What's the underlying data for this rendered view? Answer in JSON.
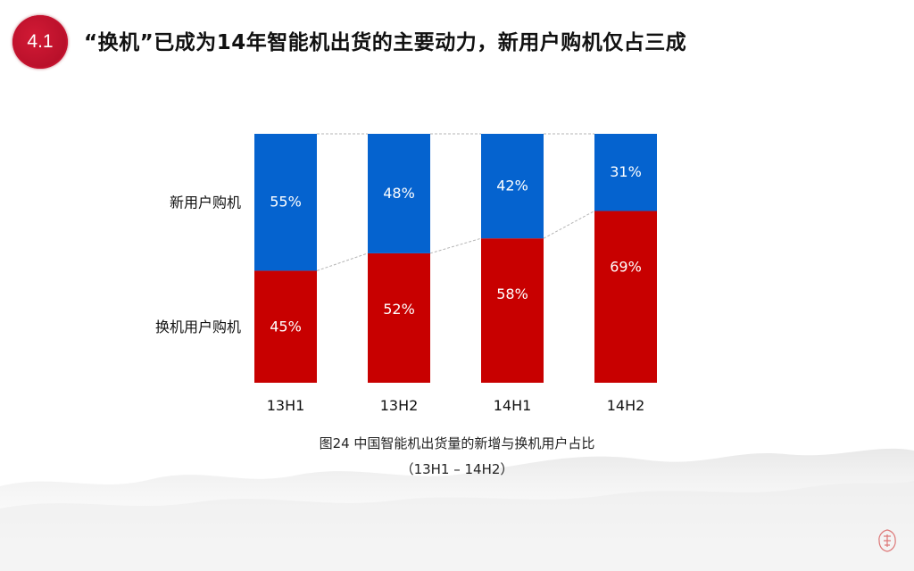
{
  "header": {
    "section_number": "4.1",
    "title": "“换机”已成为14年智能机出货的主要动力，新用户购机仅占三成"
  },
  "caption": {
    "line1": "图24 中国智能机出货量的新增与换机用户占比",
    "line2": "（13H1 – 14H2）"
  },
  "colors": {
    "new_user": "#0563cf",
    "replacement": "#c80000",
    "badge": "#c4122e"
  },
  "chart_data": {
    "type": "bar",
    "stacked": true,
    "percent": true,
    "categories": [
      "13H1",
      "13H2",
      "14H1",
      "14H2"
    ],
    "series": [
      {
        "name": "换机用户购机",
        "values": [
          45,
          52,
          58,
          69
        ],
        "labels": [
          "45%",
          "52%",
          "58%",
          "69%"
        ]
      },
      {
        "name": "新用户购机",
        "values": [
          55,
          48,
          42,
          31
        ],
        "labels": [
          "55%",
          "48%",
          "42%",
          "31%"
        ]
      }
    ],
    "ylim": [
      0,
      100
    ],
    "title": "",
    "xlabel": "",
    "ylabel": "",
    "grid": false,
    "connector_lines": true
  }
}
